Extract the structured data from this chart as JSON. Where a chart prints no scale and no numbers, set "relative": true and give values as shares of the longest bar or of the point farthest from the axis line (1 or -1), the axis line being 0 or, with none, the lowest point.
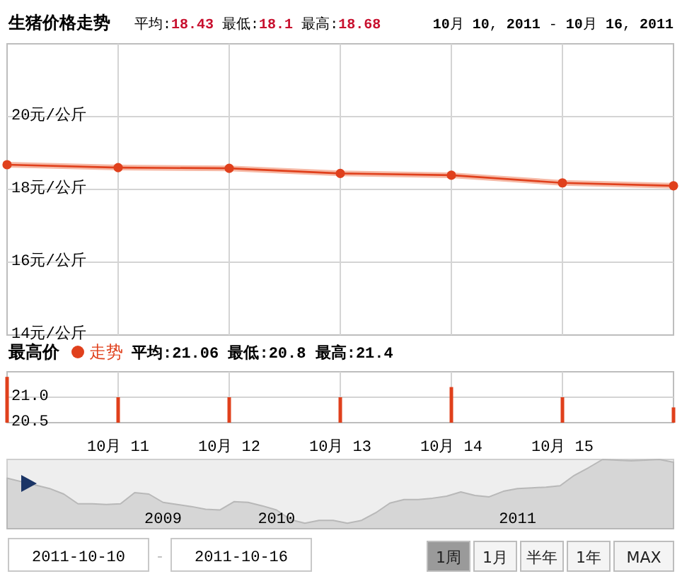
{
  "chart_data": [
    {
      "type": "line",
      "title": "生猪价格走势",
      "subtitle": "平均:18.43 最低:18.1 最高:18.68",
      "annotations": [
        "10月 10, 2011 - 10月 16, 2011"
      ],
      "categories": [
        null,
        null,
        null,
        null,
        null,
        null,
        null
      ],
      "series": [
        {
          "color": "#e0401c",
          "values": [
            18.68,
            18.6,
            18.58,
            18.44,
            18.39,
            18.18,
            18.1
          ]
        }
      ],
      "ylim": [
        14,
        22
      ],
      "yticks": [
        {
          "value": 14,
          "label": "14元/公斤"
        },
        {
          "value": 16,
          "label": "16元/公斤"
        },
        {
          "value": 18,
          "label": "18元/公斤"
        },
        {
          "value": 20,
          "label": "20元/公斤"
        }
      ],
      "grid": true,
      "marker": "circle",
      "tick_labels": "y"
    },
    {
      "type": "bar",
      "title": "最高价",
      "subtitle": "平均:21.06 最低:20.8 最高:21.4",
      "categories": [
        null,
        "10月 11",
        "10月 12",
        "10月 13",
        "10月 14",
        "10月 15",
        null
      ],
      "series": [
        {
          "name": "走势",
          "color": "#e0401c",
          "values": [
            21.4,
            21.0,
            21.0,
            21.0,
            21.2,
            21.0,
            20.8
          ]
        }
      ],
      "ylim": [
        20.5,
        21.5
      ],
      "yticks": [
        {
          "value": 20.5,
          "label": "20.5"
        },
        {
          "value": 21,
          "label": "21.0"
        }
      ],
      "grid": true,
      "legend": "top"
    },
    {
      "type": "area",
      "relative": true,
      "categories": [
        null,
        null,
        null,
        null,
        null,
        null,
        null,
        null,
        null,
        null,
        null,
        "2009",
        null,
        null,
        null,
        null,
        null,
        null,
        null,
        "2010",
        null,
        null,
        null,
        null,
        null,
        null,
        null,
        null,
        null,
        null,
        null,
        null,
        null,
        null,
        null,
        null,
        "2011",
        null,
        null,
        null,
        null,
        null,
        null,
        null,
        null,
        null,
        null,
        null
      ],
      "series": [
        {
          "color": "#d6d6d6",
          "values": [
            0.73,
            0.68,
            0.63,
            0.58,
            0.5,
            0.36,
            0.36,
            0.35,
            0.36,
            0.52,
            0.5,
            0.38,
            0.35,
            0.32,
            0.28,
            0.27,
            0.39,
            0.38,
            0.33,
            0.27,
            0.13,
            0.08,
            0.12,
            0.12,
            0.08,
            0.12,
            0.23,
            0.37,
            0.42,
            0.42,
            0.44,
            0.47,
            0.53,
            0.48,
            0.46,
            0.54,
            0.58,
            0.59,
            0.6,
            0.62,
            0.77,
            0.88,
            1,
            0.99,
            0.98,
            0.99,
            1,
            0.96
          ]
        }
      ]
    },
    {
      "type": "other",
      "annotations": [
        "2011-10-10",
        "-",
        "2011-10-16",
        "1周",
        "1月",
        "半年",
        "1年",
        "MAX"
      ]
    }
  ]
}
